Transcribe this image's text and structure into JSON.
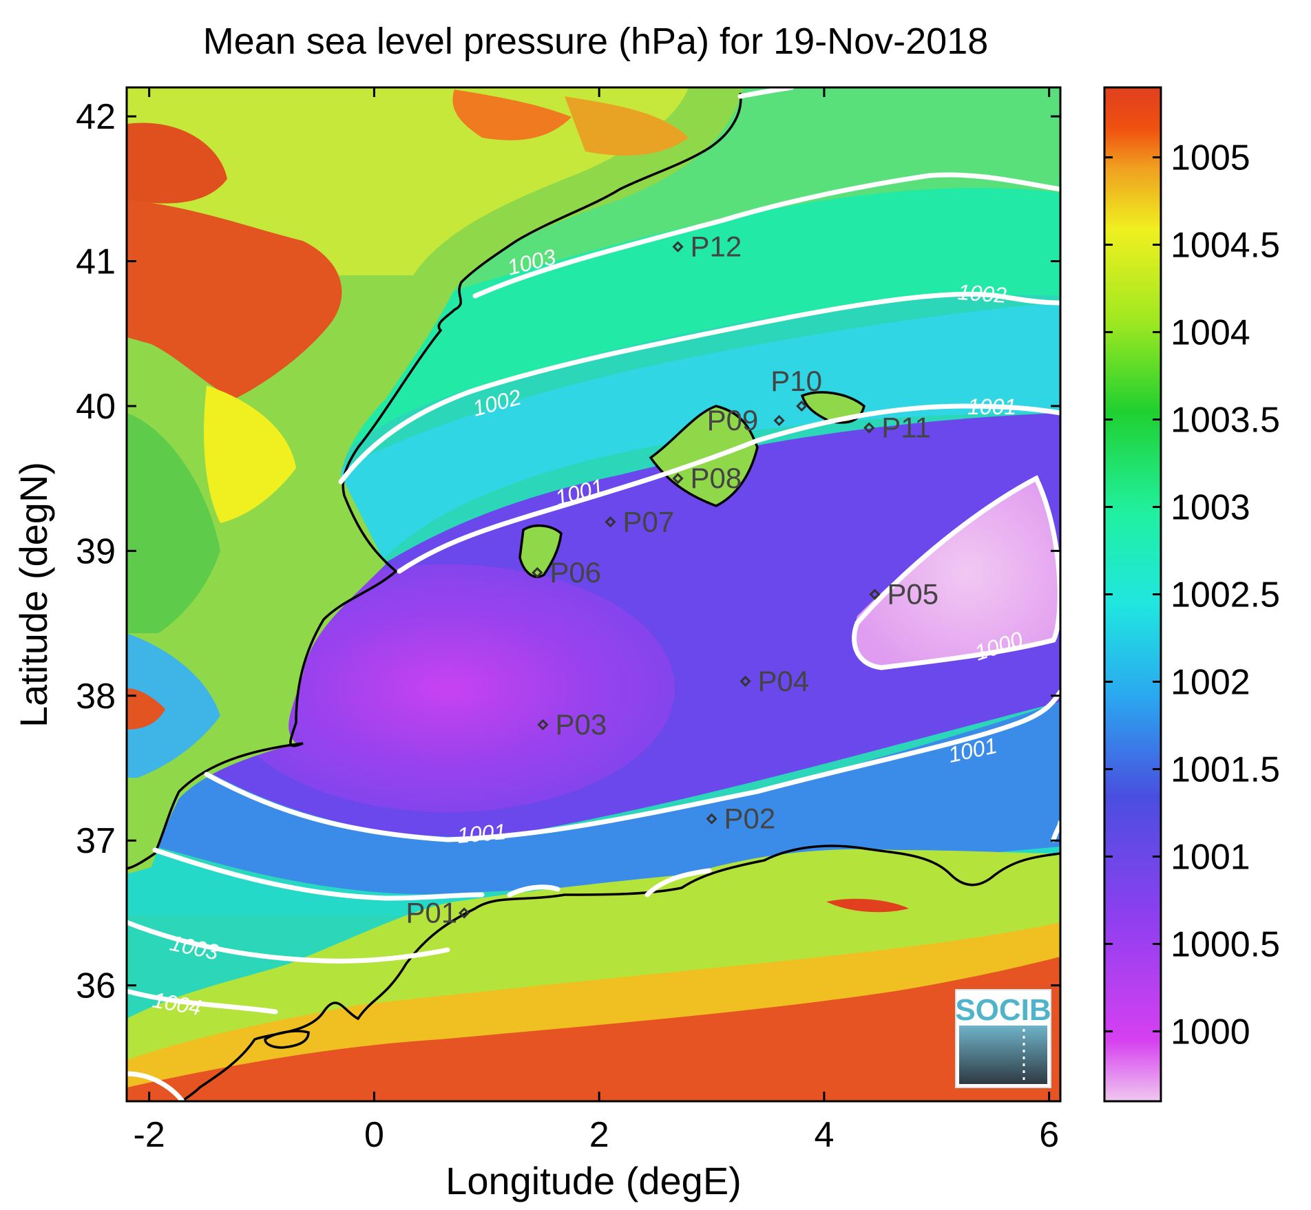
{
  "title": "Mean sea level pressure (hPa) for 19-Nov-2018",
  "xlabel": "Longitude (degE)",
  "ylabel": "Latitude (degN)",
  "x_ticks": [
    "-2",
    "0",
    "2",
    "4",
    "6"
  ],
  "y_ticks": [
    "42",
    "41",
    "40",
    "39",
    "38",
    "37",
    "36"
  ],
  "colorbar": {
    "labels": [
      "1005",
      "1004.5",
      "1004",
      "1003.5",
      "1003",
      "1002.5",
      "1002",
      "1001.5",
      "1001",
      "1000.5",
      "1000"
    ],
    "range": [
      999.6,
      1005.4
    ],
    "colors": [
      "#f0c8f0",
      "#d13ff0",
      "#8f3ff0",
      "#4a4ee0",
      "#2aa8f0",
      "#20e6e0",
      "#20f0a0",
      "#20d030",
      "#a0e820",
      "#f0f020",
      "#f0a020",
      "#f05010",
      "#e0401e"
    ]
  },
  "map": {
    "lon_range": [
      -2.2,
      6.1
    ],
    "lat_range": [
      35.2,
      42.2
    ]
  },
  "contours": [
    {
      "label": "1003"
    },
    {
      "label": "1002"
    },
    {
      "label": "1001"
    },
    {
      "label": "1000"
    },
    {
      "label": "1004"
    }
  ],
  "stations": [
    {
      "name": "P01",
      "lon": 0.8,
      "lat": 36.5
    },
    {
      "name": "P02",
      "lon": 3.0,
      "lat": 37.15
    },
    {
      "name": "P03",
      "lon": 1.5,
      "lat": 37.8
    },
    {
      "name": "P04",
      "lon": 3.3,
      "lat": 38.1
    },
    {
      "name": "P05",
      "lon": 4.45,
      "lat": 38.7
    },
    {
      "name": "P06",
      "lon": 1.45,
      "lat": 38.85
    },
    {
      "name": "P07",
      "lon": 2.1,
      "lat": 39.2
    },
    {
      "name": "P08",
      "lon": 2.7,
      "lat": 39.5
    },
    {
      "name": "P09",
      "lon": 3.6,
      "lat": 39.9
    },
    {
      "name": "P10",
      "lon": 3.8,
      "lat": 40.0
    },
    {
      "name": "P11",
      "lon": 4.4,
      "lat": 39.85
    },
    {
      "name": "P12",
      "lon": 2.7,
      "lat": 41.1
    }
  ],
  "logo": {
    "text": "SOCIB"
  }
}
